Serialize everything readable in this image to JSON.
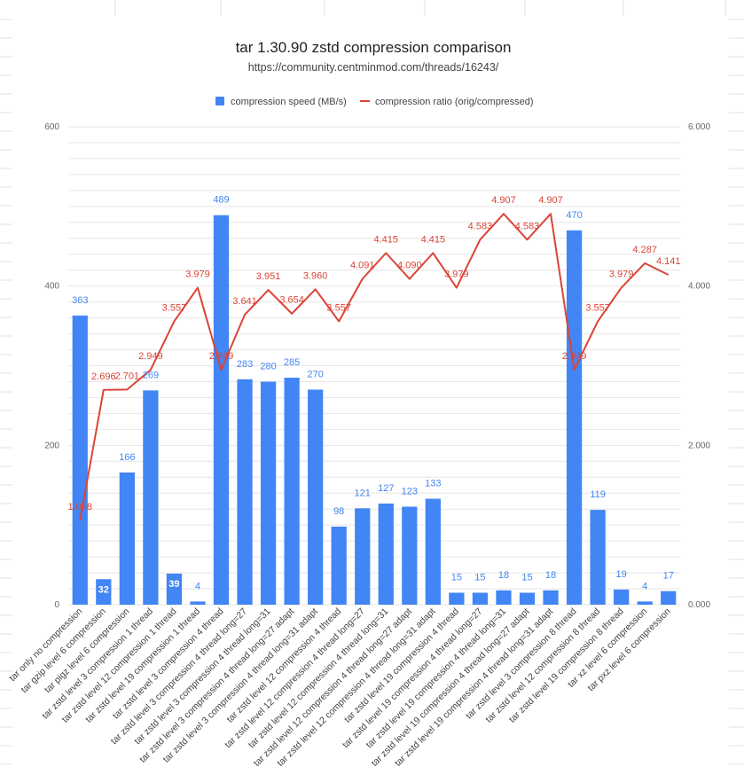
{
  "chart_data": {
    "type": "bar",
    "title": "tar 1.30.90 zstd compression comparison",
    "subtitle": "https://community.centminmod.com/threads/16243/",
    "legend_position": "top",
    "grid": true,
    "categories": [
      "tar only no compression",
      "tar gzip level 6 compression",
      "tar pigz level 6 compression",
      "tar zstd level 3 compression 1 thread",
      "tar zstd level 12 compression 1 thread",
      "tar zstd level 19 compression 1 thread",
      "tar zstd level 3 compression 4 thread",
      "tar zstd level 3 compression 4 thread long=27",
      "tar zstd level 3 compression 4 thread long=31",
      "tar zstd level 3 compression 4 thread long=27 adapt",
      "tar zstd level 3 compression 4 thread long=31 adapt",
      "tar zstd level 12 compression 4 thread",
      "tar zstd level 12 compression 4 thread long=27",
      "tar zstd level 12 compression 4 thread long=31",
      "tar zstd level 12 compression 4 thread long=27 adapt",
      "tar zstd level 12 compression 4 thread long=31 adapt",
      "tar zstd level 19 compression 4 thread",
      "tar zstd level 19 compression 4 thread long=27",
      "tar zstd level 19 compression 4 thread long=31",
      "tar zstd level 19 compression 4 thread long=27 adapt",
      "tar zstd level 19 compression 4 thread long=31 adapt",
      "tar zstd level 3 compression 8 thread",
      "tar zstd level 12 compression 8 thread",
      "tar zstd level 19 compression 8 thread",
      "tar xz level 6 compression",
      "tar pxz level 6 compression"
    ],
    "series": [
      {
        "name": "compression speed (MB/s)",
        "type": "bar",
        "axis": "left",
        "color": "#4285f4",
        "values": [
          363,
          32,
          166,
          269,
          39,
          4,
          489,
          283,
          280,
          285,
          270,
          98,
          121,
          127,
          123,
          133,
          15,
          15,
          18,
          15,
          18,
          470,
          119,
          19,
          4,
          17
        ],
        "labels": [
          "363",
          "32",
          "166",
          "269",
          "39",
          "4",
          "489",
          "283",
          "280",
          "285",
          "270",
          "98",
          "121",
          "127",
          "123",
          "133",
          "15",
          "15",
          "18",
          "15",
          "18",
          "470",
          "119",
          "19",
          "4",
          "17"
        ]
      },
      {
        "name": "compression ratio (orig/compressed)",
        "type": "line",
        "axis": "right",
        "color": "#db4437",
        "values": [
          1.058,
          2.696,
          2.701,
          2.949,
          3.557,
          3.979,
          2.949,
          3.641,
          3.951,
          3.654,
          3.96,
          3.557,
          4.091,
          4.415,
          4.09,
          4.415,
          3.979,
          4.583,
          4.907,
          4.583,
          4.907,
          2.949,
          3.557,
          3.979,
          4.287,
          4.141
        ],
        "labels": [
          "1.058",
          "2.696",
          "2.701",
          "2.949",
          "3.557",
          "3.979",
          "2.949",
          "3.641",
          "3.951",
          "3.654",
          "3.960",
          "3.557",
          "4.091",
          "4.415",
          "4.090",
          "4.415",
          "3.979",
          "4.583",
          "4.907",
          "4.583",
          "4.907",
          "2.949",
          "3.557",
          "3.979",
          "4.287",
          "4.141"
        ]
      }
    ],
    "y_left": {
      "min": 0,
      "max": 600,
      "ticks": [
        "0",
        "200",
        "400",
        "600"
      ]
    },
    "y_right": {
      "min": 0,
      "max": 6,
      "ticks": [
        "0.000",
        "2.000",
        "4.000",
        "6.000"
      ]
    }
  }
}
